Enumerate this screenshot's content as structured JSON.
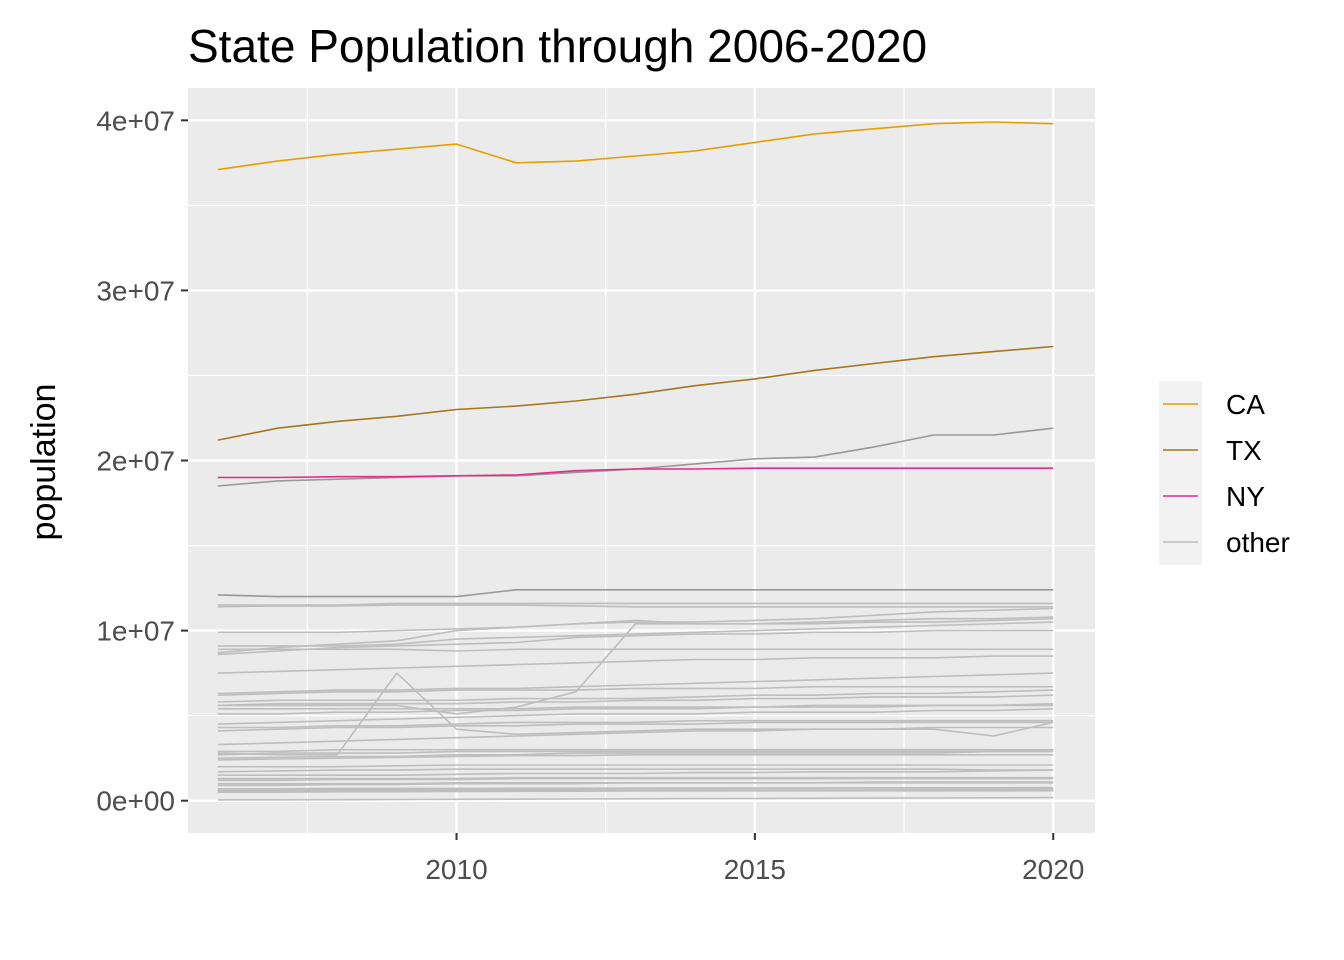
{
  "chart_data": {
    "type": "line",
    "title": "State Population through 2006-2020",
    "xlabel": "",
    "ylabel": "population",
    "xlim": [
      2005.5,
      2020.7
    ],
    "ylim": [
      -1900000,
      41900000
    ],
    "x_ticks": [
      2010,
      2015,
      2020
    ],
    "x_tick_labels": [
      "2010",
      "2015",
      "2020"
    ],
    "y_ticks": [
      0,
      10000000,
      20000000,
      30000000,
      40000000
    ],
    "y_tick_labels": [
      "0e+00",
      "1e+07",
      "2e+07",
      "3e+07",
      "4e+07"
    ],
    "grid": true,
    "legend_position": "right",
    "legend": [
      "CA",
      "TX",
      "NY",
      "other"
    ],
    "colors": {
      "CA": "#E69F00",
      "TX": "#A6761D",
      "NY": "#E7298A",
      "other": "#BEBEBE",
      "other_dark": "#999999"
    },
    "x": [
      2006,
      2007,
      2008,
      2009,
      2010,
      2011,
      2012,
      2013,
      2014,
      2015,
      2016,
      2017,
      2018,
      2019,
      2020
    ],
    "series": [
      {
        "name": "CA",
        "group": "CA",
        "values": [
          37100000,
          37600000,
          38000000,
          38300000,
          38600000,
          37500000,
          37600000,
          37900000,
          38200000,
          38700000,
          39200000,
          39500000,
          39800000,
          39900000,
          39800000
        ]
      },
      {
        "name": "TX",
        "group": "TX",
        "values": [
          21200000,
          21900000,
          22300000,
          22600000,
          23000000,
          23200000,
          23500000,
          23900000,
          24400000,
          24800000,
          25300000,
          25700000,
          26100000,
          26400000,
          26700000
        ]
      },
      {
        "name": "NY",
        "group": "NY",
        "values": [
          19000000,
          19000000,
          19050000,
          19050000,
          19100000,
          19150000,
          19400000,
          19500000,
          19500000,
          19550000,
          19550000,
          19550000,
          19550000,
          19550000,
          19550000
        ]
      },
      {
        "group": "other_dark",
        "values": [
          18500000,
          18800000,
          18900000,
          19000000,
          19100000,
          19100000,
          19300000,
          19500000,
          19800000,
          20100000,
          20200000,
          20800000,
          21500000,
          21500000,
          21900000
        ]
      },
      {
        "group": "other_dark",
        "values": [
          12100000,
          12000000,
          12000000,
          12000000,
          12000000,
          12400000,
          12400000,
          12400000,
          12400000,
          12400000,
          12400000,
          12400000,
          12400000,
          12400000,
          12400000
        ]
      },
      {
        "group": "other",
        "values": [
          11500000,
          11500000,
          11500000,
          11600000,
          11600000,
          11600000,
          11600000,
          11600000,
          11600000,
          11600000,
          11600000,
          11600000,
          11600000,
          11600000,
          11600000
        ]
      },
      {
        "group": "other",
        "values": [
          11400000,
          11450000,
          11450000,
          11500000,
          11500000,
          11500000,
          11450000,
          11400000,
          11400000,
          11400000,
          11400000,
          11400000,
          11400000,
          11400000,
          11400000
        ]
      },
      {
        "group": "other",
        "values": [
          9900000,
          9900000,
          9900000,
          10000000,
          10100000,
          10200000,
          10400000,
          10500000,
          10500000,
          10600000,
          10700000,
          10900000,
          11100000,
          11200000,
          11300000
        ]
      },
      {
        "group": "other",
        "values": [
          8700000,
          9000000,
          9200000,
          9400000,
          10000000,
          10200000,
          10400000,
          10600000,
          10400000,
          10400000,
          10500000,
          10600000,
          10700000,
          10700000,
          10800000
        ]
      },
      {
        "group": "other",
        "values": [
          9100000,
          9100000,
          9100000,
          9200000,
          9500000,
          9600000,
          9700000,
          9800000,
          9900000,
          10000000,
          10100000,
          10200000,
          10300000,
          10400000,
          10500000
        ]
      },
      {
        "group": "other",
        "values": [
          8900000,
          8900000,
          8900000,
          8900000,
          8800000,
          8900000,
          8900000,
          8900000,
          8900000,
          8900000,
          8900000,
          8900000,
          8900000,
          8900000,
          8900000
        ]
      },
      {
        "group": "other",
        "values": [
          8600000,
          8800000,
          9000000,
          9100000,
          9200000,
          9300000,
          9600000,
          9700000,
          9800000,
          9800000,
          9900000,
          9900000,
          10000000,
          10000000,
          10000000
        ]
      },
      {
        "group": "other",
        "values": [
          7500000,
          7600000,
          7700000,
          7800000,
          7900000,
          8000000,
          8100000,
          8200000,
          8300000,
          8300000,
          8400000,
          8400000,
          8400000,
          8500000,
          8500000
        ]
      },
      {
        "group": "other",
        "values": [
          6300000,
          6400000,
          6500000,
          6500000,
          6600000,
          6600000,
          6700000,
          6800000,
          6900000,
          7000000,
          7100000,
          7200000,
          7300000,
          7400000,
          7500000
        ]
      },
      {
        "group": "other",
        "values": [
          6200000,
          6300000,
          6400000,
          6400000,
          6500000,
          6500000,
          6500000,
          6600000,
          6600000,
          6600000,
          6700000,
          6700000,
          6700000,
          6700000,
          6700000
        ]
      },
      {
        "group": "other",
        "values": [
          5800000,
          5900000,
          5900000,
          5900000,
          5900000,
          6000000,
          6000000,
          6000000,
          6100000,
          6200000,
          6200000,
          6300000,
          6300000,
          6400000,
          6500000
        ]
      },
      {
        "group": "other",
        "values": [
          5600000,
          5700000,
          5700000,
          5700000,
          5700000,
          5800000,
          5800000,
          5900000,
          5900000,
          6000000,
          6000000,
          6100000,
          6100000,
          6100000,
          6200000
        ]
      },
      {
        "group": "other",
        "values": [
          5400000,
          5400000,
          5400000,
          5400000,
          5400000,
          5400000,
          5500000,
          5500000,
          5500000,
          5500000,
          5600000,
          5600000,
          5600000,
          5600000,
          5700000
        ]
      },
      {
        "group": "other",
        "values": [
          5100000,
          5100000,
          5200000,
          5200000,
          5300000,
          5300000,
          5400000,
          5400000,
          5400000,
          5500000,
          5500000,
          5500000,
          5600000,
          5600000,
          5600000
        ]
      },
      {
        "group": "other",
        "values": [
          4500000,
          4600000,
          4700000,
          4800000,
          4900000,
          5000000,
          5100000,
          5100000,
          5100000,
          5200000,
          5200000,
          5200000,
          5300000,
          5300000,
          5400000
        ]
      },
      {
        "group": "other",
        "values": [
          4300000,
          4300000,
          4400000,
          4400000,
          4500000,
          4600000,
          4600000,
          4600000,
          4700000,
          4700000,
          4700000,
          4700000,
          4700000,
          4700000,
          4700000
        ]
      },
      {
        "group": "other",
        "values": [
          4100000,
          4200000,
          4300000,
          4300000,
          4400000,
          4400000,
          4500000,
          4500000,
          4500000,
          4600000,
          4600000,
          4600000,
          4600000,
          4600000,
          4600000
        ]
      },
      {
        "group": "other",
        "values": [
          3300000,
          3400000,
          3500000,
          3600000,
          3700000,
          3800000,
          3900000,
          4000000,
          4100000,
          4100000,
          4200000,
          4200000,
          4300000,
          4300000,
          4300000
        ]
      },
      {
        "group": "other",
        "values": [
          2900000,
          2900000,
          3000000,
          3000000,
          3000000,
          3000000,
          3000000,
          3000000,
          3000000,
          3000000,
          3000000,
          3000000,
          3000000,
          3000000,
          3000000
        ]
      },
      {
        "group": "other",
        "values": [
          2700000,
          2800000,
          2800000,
          2800000,
          2900000,
          2900000,
          2900000,
          2900000,
          2900000,
          2900000,
          2900000,
          2900000,
          2900000,
          2900000,
          2900000
        ]
      },
      {
        "group": "other",
        "values": [
          2500000,
          2550000,
          2600000,
          2600000,
          2700000,
          2700000,
          2800000,
          2800000,
          2800000,
          2800000,
          2800000,
          2800000,
          2800000,
          2900000,
          2900000
        ]
      },
      {
        "group": "other",
        "values": [
          2400000,
          2450000,
          2500000,
          2550000,
          2600000,
          2650000,
          2650000,
          2700000,
          2700000,
          2700000,
          2700000,
          2700000,
          2700000,
          2700000,
          2700000
        ]
      },
      {
        "group": "other",
        "values": [
          2000000,
          2000000,
          2000000,
          2050000,
          2100000,
          2100000,
          2100000,
          2100000,
          2100000,
          2100000,
          2100000,
          2100000,
          2100000,
          2100000,
          2100000
        ]
      },
      {
        "group": "other",
        "values": [
          1700000,
          1750000,
          1800000,
          1800000,
          1850000,
          1850000,
          1850000,
          1850000,
          1850000,
          1850000,
          1850000,
          1850000,
          1850000,
          1800000,
          1800000
        ]
      },
      {
        "group": "other",
        "values": [
          1500000,
          1500000,
          1500000,
          1500000,
          1550000,
          1600000,
          1600000,
          1600000,
          1650000,
          1650000,
          1700000,
          1700000,
          1700000,
          1750000,
          1800000
        ]
      },
      {
        "group": "other",
        "values": [
          1300000,
          1300000,
          1300000,
          1300000,
          1300000,
          1350000,
          1350000,
          1350000,
          1350000,
          1350000,
          1350000,
          1350000,
          1350000,
          1350000,
          1350000
        ]
      },
      {
        "group": "other",
        "values": [
          1200000,
          1200000,
          1250000,
          1250000,
          1250000,
          1300000,
          1300000,
          1300000,
          1300000,
          1300000,
          1300000,
          1300000,
          1300000,
          1300000,
          1300000
        ]
      },
      {
        "group": "other",
        "values": [
          1000000,
          1000000,
          1000000,
          1000000,
          1050000,
          1050000,
          1050000,
          1050000,
          1050000,
          1050000,
          1050000,
          1100000,
          1100000,
          1100000,
          1100000
        ]
      },
      {
        "group": "other",
        "values": [
          900000,
          900000,
          950000,
          950000,
          1000000,
          1000000,
          1000000,
          1050000,
          1050000,
          1050000,
          1050000,
          1050000,
          1050000,
          1050000,
          1050000
        ]
      },
      {
        "group": "other",
        "values": [
          700000,
          700000,
          720000,
          720000,
          720000,
          730000,
          730000,
          740000,
          740000,
          740000,
          740000,
          740000,
          740000,
          740000,
          740000
        ]
      },
      {
        "group": "other",
        "values": [
          600000,
          620000,
          640000,
          650000,
          670000,
          690000,
          700000,
          710000,
          720000,
          730000,
          740000,
          750000,
          760000,
          760000,
          770000
        ]
      },
      {
        "group": "other",
        "values": [
          500000,
          500000,
          520000,
          530000,
          540000,
          550000,
          560000,
          580000,
          590000,
          600000,
          610000,
          620000,
          640000,
          650000,
          660000
        ]
      },
      {
        "group": "other",
        "values": [
          600000,
          600000,
          610000,
          610000,
          620000,
          620000,
          620000,
          620000,
          620000,
          620000,
          620000,
          620000,
          620000,
          620000,
          620000
        ]
      },
      {
        "group": "other",
        "values": [
          530000,
          530000,
          530000,
          540000,
          560000,
          570000,
          570000,
          580000,
          580000,
          580000,
          580000,
          580000,
          580000,
          580000,
          580000
        ]
      },
      {
        "group": "other",
        "values": [
          50000,
          50000,
          60000,
          70000,
          80000,
          90000,
          100000,
          110000,
          120000,
          130000,
          140000,
          150000,
          160000,
          170000,
          180000
        ]
      },
      {
        "group": "other",
        "values": [
          2800000,
          2700000,
          2700000,
          7500000,
          4200000,
          3900000,
          4000000,
          4100000,
          4200000,
          4200000,
          4200000,
          4200000,
          4200000,
          3800000,
          4600000
        ]
      },
      {
        "group": "other",
        "values": [
          5600000,
          5600000,
          5600000,
          5600000,
          5100000,
          5500000,
          6400000,
          10400000,
          10400000,
          10400000,
          10400000,
          10500000,
          10500000,
          10600000,
          10700000
        ]
      }
    ]
  }
}
